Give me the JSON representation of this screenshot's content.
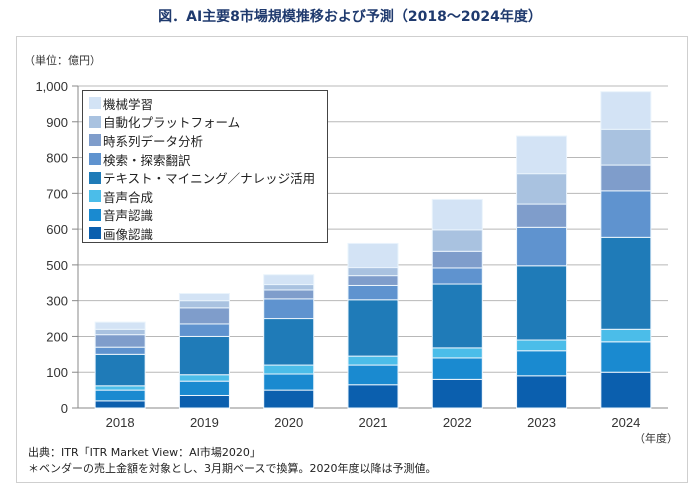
{
  "title": "図．AI主要8市場規模推移および予測（2018～2024年度）",
  "unit_label": "（単位：億円）",
  "x_unit": "（年度）",
  "source": "出典：ITR「ITR Market View：AI市場2020」",
  "note": "＊ベンダーの売上金額を対象とし、3月期ベースで換算。2020年度以降は予測値。",
  "chart_data": {
    "type": "bar",
    "stacked": true,
    "title": "AI主要8市場規模推移および予測（2018～2024年度）",
    "xlabel": "年度",
    "ylabel": "億円",
    "categories": [
      "2018",
      "2019",
      "2020",
      "2021",
      "2022",
      "2023",
      "2024"
    ],
    "y_ticks": [
      "0",
      "100",
      "200",
      "300",
      "500",
      "600",
      "700",
      "800",
      "900",
      "1,000"
    ],
    "y_tick_values": [
      0,
      100,
      200,
      300,
      500,
      600,
      700,
      800,
      900,
      1000
    ],
    "ylim": [
      0,
      1000
    ],
    "grid": true,
    "legend_position": "top-left",
    "series": [
      {
        "name": "画像認識",
        "color": "#0b5fae",
        "values": [
          20,
          35,
          50,
          65,
          80,
          90,
          100
        ]
      },
      {
        "name": "音声認識",
        "color": "#1a8ad0",
        "values": [
          30,
          40,
          45,
          55,
          60,
          70,
          85
        ]
      },
      {
        "name": "音声合成",
        "color": "#4bbde9",
        "values": [
          12,
          18,
          25,
          25,
          28,
          30,
          35
        ]
      },
      {
        "name": "テキスト・マイニング／ナレッジ活用",
        "color": "#1f7bb8",
        "values": [
          88,
          107,
          130,
          160,
          225,
          305,
          357
        ]
      },
      {
        "name": "検索・探索翻訳",
        "color": "#5f93cf",
        "values": [
          20,
          35,
          60,
          80,
          90,
          110,
          130
        ]
      },
      {
        "name": "時系列データ分析",
        "color": "#7f9dcb",
        "values": [
          35,
          45,
          50,
          55,
          55,
          65,
          72
        ]
      },
      {
        "name": "自動化プラットフォーム",
        "color": "#a9c2e0",
        "values": [
          15,
          20,
          30,
          45,
          60,
          85,
          100
        ]
      },
      {
        "name": "機械学習",
        "color": "#d3e3f5",
        "values": [
          20,
          40,
          55,
          75,
          85,
          105,
          105
        ]
      }
    ],
    "legend_order": [
      "機械学習",
      "自動化プラットフォーム",
      "時系列データ分析",
      "検索・探索翻訳",
      "テキスト・マイニング／ナレッジ活用",
      "音声合成",
      "音声認識",
      "画像認識"
    ]
  }
}
